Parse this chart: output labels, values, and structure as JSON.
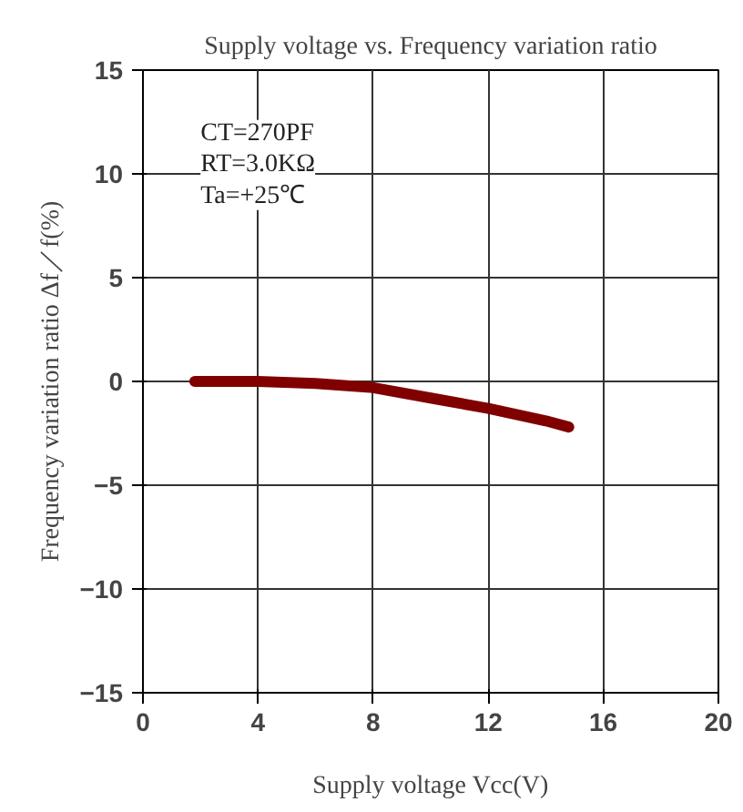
{
  "chart_data": {
    "type": "line",
    "title": "Supply voltage vs. Frequency variation ratio",
    "xlabel": "Supply voltage Vcc(V)",
    "ylabel": "Frequency variation ratio Δf／f(%)",
    "annotations": [
      "CT=270PF\nRT=3.0KΩ\nTa=+25℃"
    ],
    "x": [
      1.8,
      4,
      6,
      8,
      10,
      12,
      14,
      14.8
    ],
    "series": [
      {
        "color": "#800000",
        "values": [
          0,
          0,
          -0.1,
          -0.3,
          -0.8,
          -1.3,
          -1.9,
          -2.2
        ]
      }
    ],
    "xlim": [
      0,
      20
    ],
    "xticks": [
      0,
      4,
      8,
      12,
      16,
      20
    ],
    "ylim": [
      -15,
      15
    ],
    "yticks": [
      -15,
      -10,
      -5,
      0,
      5,
      10,
      15
    ],
    "grid": true
  }
}
